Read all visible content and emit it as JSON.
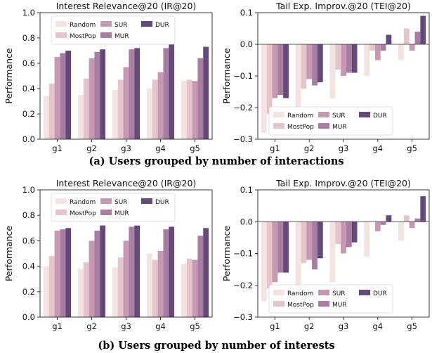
{
  "captions": {
    "top": "(a) Users grouped by number of interactions",
    "bottom": "(b) Users grouped by number of interests"
  },
  "series_colors": {
    "Random": "#f3e3e1",
    "MostPop": "#e6c4cb",
    "SUR": "#c699b2",
    "MUR": "#a97ca3",
    "DUR": "#634a79"
  },
  "chart_data": [
    {
      "type": "bar",
      "title": "Interest Relevance@20 (IR@20)",
      "ylabel": "Performance",
      "ylim": [
        0,
        1.0
      ],
      "yticks": [
        0.0,
        0.2,
        0.4,
        0.6,
        0.8,
        1.0
      ],
      "ytick_labels": [
        "0.0",
        "0.2",
        "0.4",
        "0.6",
        "0.8",
        "1.0"
      ],
      "legend": "top",
      "categories": [
        "g1",
        "g2",
        "g3",
        "g4",
        "g5"
      ],
      "series": [
        {
          "name": "Random",
          "values": [
            0.34,
            0.35,
            0.39,
            0.4,
            0.46
          ]
        },
        {
          "name": "MostPop",
          "values": [
            0.44,
            0.48,
            0.47,
            0.47,
            0.47
          ]
        },
        {
          "name": "SUR",
          "values": [
            0.65,
            0.64,
            0.57,
            0.53,
            0.46
          ]
        },
        {
          "name": "MUR",
          "values": [
            0.68,
            0.69,
            0.71,
            0.72,
            0.64
          ]
        },
        {
          "name": "DUR",
          "values": [
            0.7,
            0.71,
            0.72,
            0.75,
            0.73
          ]
        }
      ]
    },
    {
      "type": "bar",
      "title": "Tail Exp. Improv.@20 (TEI@20)",
      "ylabel": "Performance",
      "ylim": [
        -0.3,
        0.1
      ],
      "yticks": [
        -0.3,
        -0.2,
        -0.1,
        0.0,
        0.1
      ],
      "ytick_labels": [
        "−0.3",
        "−0.2",
        "−0.1",
        "0.0",
        "0.1"
      ],
      "legend": "bottom",
      "categories": [
        "g1",
        "g2",
        "g3",
        "g4",
        "g5"
      ],
      "series": [
        {
          "name": "Random",
          "values": [
            -0.28,
            -0.24,
            -0.17,
            -0.1,
            -0.05
          ]
        },
        {
          "name": "MostPop",
          "values": [
            -0.22,
            -0.14,
            -0.08,
            -0.02,
            0.05
          ]
        },
        {
          "name": "SUR",
          "values": [
            -0.17,
            -0.11,
            -0.1,
            -0.05,
            -0.02
          ]
        },
        {
          "name": "MUR",
          "values": [
            -0.16,
            -0.13,
            -0.09,
            -0.02,
            0.04
          ]
        },
        {
          "name": "DUR",
          "values": [
            -0.17,
            -0.12,
            -0.09,
            0.03,
            0.09
          ]
        }
      ]
    },
    {
      "type": "bar",
      "title": "Interest Relevance@20 (IR@20)",
      "ylabel": "Performance",
      "ylim": [
        0,
        1.0
      ],
      "yticks": [
        0.0,
        0.2,
        0.4,
        0.6,
        0.8,
        1.0
      ],
      "ytick_labels": [
        "0.0",
        "0.2",
        "0.4",
        "0.6",
        "0.8",
        "1.0"
      ],
      "legend": "top",
      "categories": [
        "g1",
        "g2",
        "g3",
        "g4",
        "g5"
      ],
      "series": [
        {
          "name": "Random",
          "values": [
            0.4,
            0.38,
            0.39,
            0.5,
            0.42
          ]
        },
        {
          "name": "MostPop",
          "values": [
            0.48,
            0.43,
            0.47,
            0.45,
            0.46
          ]
        },
        {
          "name": "SUR",
          "values": [
            0.68,
            0.6,
            0.6,
            0.52,
            0.45
          ]
        },
        {
          "name": "MUR",
          "values": [
            0.69,
            0.68,
            0.71,
            0.69,
            0.64
          ]
        },
        {
          "name": "DUR",
          "values": [
            0.7,
            0.72,
            0.72,
            0.71,
            0.7
          ]
        }
      ]
    },
    {
      "type": "bar",
      "title": "Tail Exp. Improv.@20 (TEI@20)",
      "ylabel": "Performance",
      "ylim": [
        -0.3,
        0.1
      ],
      "yticks": [
        -0.3,
        -0.2,
        -0.1,
        0.0,
        0.1
      ],
      "ytick_labels": [
        "−0.3",
        "−0.2",
        "−0.1",
        "0.0",
        "0.1"
      ],
      "legend": "bottom",
      "categories": [
        "g1",
        "g2",
        "g3",
        "g4",
        "g5"
      ],
      "series": [
        {
          "name": "Random",
          "values": [
            -0.25,
            -0.21,
            -0.19,
            -0.11,
            -0.06
          ]
        },
        {
          "name": "MostPop",
          "values": [
            -0.21,
            -0.13,
            -0.07,
            0.0,
            0.02
          ]
        },
        {
          "name": "SUR",
          "values": [
            -0.19,
            -0.12,
            -0.1,
            -0.03,
            -0.02
          ]
        },
        {
          "name": "MUR",
          "values": [
            -0.16,
            -0.15,
            -0.08,
            -0.01,
            0.01
          ]
        },
        {
          "name": "DUR",
          "values": [
            -0.16,
            -0.115,
            -0.065,
            0.02,
            0.08
          ]
        }
      ]
    }
  ]
}
